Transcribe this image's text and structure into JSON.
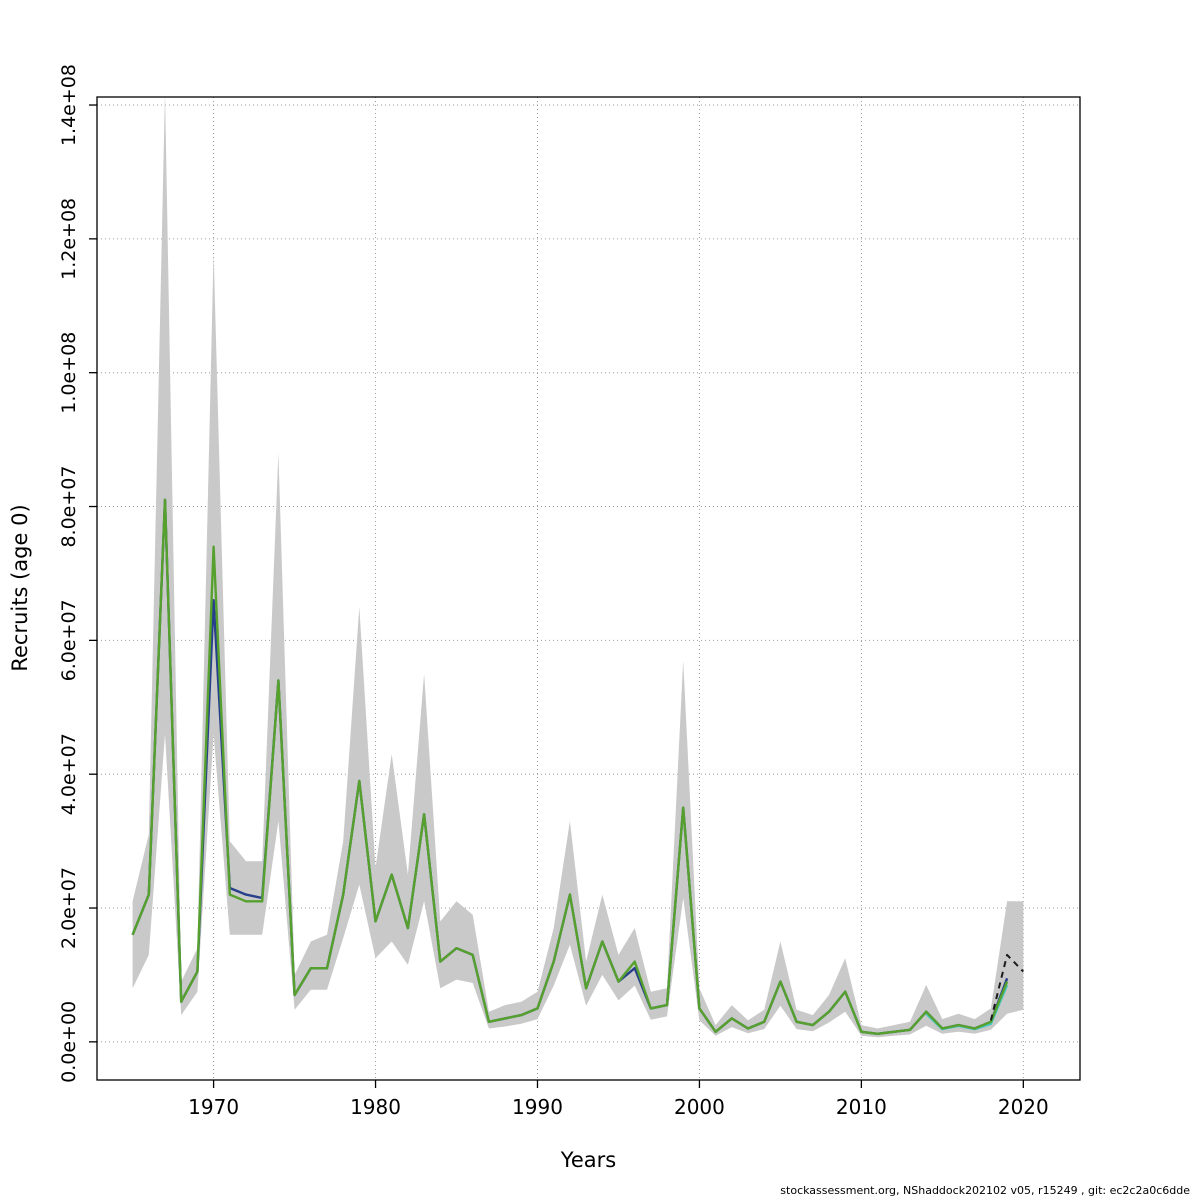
{
  "figure": {
    "xlabel": "Years",
    "ylabel": "Recruits (age 0)",
    "footer": "stockassessment.org, NShaddock202102  v05, r15249 , git: ec2c2a0c6dde"
  },
  "chart_data": {
    "type": "line",
    "title": "",
    "xlabel": "Years",
    "ylabel": "Recruits (age 0)",
    "grid": true,
    "xlim": [
      1962.8,
      2023.5
    ],
    "ylim": [
      -5700000,
      141200000
    ],
    "xticks": [
      1970,
      1980,
      1990,
      2000,
      2010,
      2020
    ],
    "yticks": [
      0,
      20000000,
      40000000,
      60000000,
      80000000,
      100000000,
      120000000,
      140000000
    ],
    "ytick_labels": [
      "0.0e+00",
      "2.0e+07",
      "4.0e+07",
      "6.0e+07",
      "8.0e+07",
      "1.0e+08",
      "1.2e+08",
      "1.4e+08"
    ],
    "x": [
      1965,
      1966,
      1967,
      1968,
      1969,
      1970,
      1971,
      1972,
      1973,
      1974,
      1975,
      1976,
      1977,
      1978,
      1979,
      1980,
      1981,
      1982,
      1983,
      1984,
      1985,
      1986,
      1987,
      1988,
      1989,
      1990,
      1991,
      1992,
      1993,
      1994,
      1995,
      1996,
      1997,
      1998,
      1999,
      2000,
      2001,
      2002,
      2003,
      2004,
      2005,
      2006,
      2007,
      2008,
      2009,
      2010,
      2011,
      2012,
      2013,
      2014,
      2015,
      2016,
      2017,
      2018,
      2019,
      2020
    ],
    "band": {
      "name": "confidence-band",
      "color": "#c9c9c9",
      "lower": [
        8000000,
        13000000,
        46000000,
        4000000,
        7500000,
        46000000,
        16000000,
        16000000,
        16000000,
        33000000,
        4800000,
        7800000,
        7800000,
        15500000,
        23500000,
        12500000,
        15000000,
        11500000,
        21000000,
        8000000,
        9300000,
        8800000,
        2000000,
        2300000,
        2700000,
        3400000,
        8400000,
        14500000,
        5400000,
        10000000,
        6200000,
        8400000,
        3300000,
        3800000,
        21500000,
        3200000,
        900000,
        2200000,
        1300000,
        1900000,
        5400000,
        1900000,
        1600000,
        2900000,
        4500000,
        900000,
        700000,
        900000,
        1100000,
        2400000,
        1200000,
        1500000,
        1200000,
        1800000,
        4200000,
        4800000
      ],
      "upper": [
        21000000,
        31000000,
        142000000,
        9000000,
        14000000,
        118000000,
        30000000,
        27000000,
        27000000,
        88000000,
        10000000,
        15000000,
        16000000,
        30000000,
        65000000,
        26000000,
        43000000,
        25000000,
        55000000,
        18000000,
        21000000,
        19000000,
        4500000,
        5500000,
        6000000,
        7500000,
        17000000,
        33000000,
        12000000,
        22000000,
        13000000,
        17000000,
        7500000,
        8000000,
        57000000,
        8000000,
        2500000,
        5500000,
        3200000,
        4800000,
        15000000,
        4800000,
        4000000,
        7000000,
        12500000,
        2500000,
        2000000,
        2500000,
        3000000,
        8500000,
        3400000,
        4200000,
        3400000,
        5000000,
        21000000,
        21000000
      ]
    },
    "series": [
      {
        "name": "run-blue",
        "color": "#27408b",
        "width": 2.4,
        "dash": false,
        "values": [
          16000000,
          22000000,
          81000000,
          6000000,
          10500000,
          66000000,
          23000000,
          22000000,
          21500000,
          54000000,
          7000000,
          11000000,
          11000000,
          22000000,
          39000000,
          18000000,
          25000000,
          17000000,
          34000000,
          12000000,
          14000000,
          13000000,
          3000000,
          3500000,
          4000000,
          5000000,
          12000000,
          22000000,
          8000000,
          15000000,
          9000000,
          11000000,
          5000000,
          5500000,
          35000000,
          5000000,
          1500000,
          3500000,
          2000000,
          3000000,
          9000000,
          3000000,
          2500000,
          4500000,
          7500000,
          1500000,
          1200000,
          1500000,
          1800000,
          4500000,
          2000000,
          2500000,
          2000000,
          3000000,
          9500000,
          null
        ]
      },
      {
        "name": "run-cyan",
        "color": "#45c6c0",
        "width": 2.4,
        "dash": false,
        "values": [
          null,
          null,
          null,
          null,
          null,
          null,
          null,
          null,
          null,
          null,
          null,
          null,
          null,
          null,
          null,
          null,
          null,
          null,
          null,
          null,
          null,
          null,
          null,
          null,
          null,
          null,
          null,
          null,
          null,
          null,
          null,
          null,
          null,
          null,
          null,
          null,
          null,
          null,
          null,
          null,
          null,
          null,
          null,
          null,
          null,
          null,
          null,
          null,
          null,
          4200000,
          1900000,
          2400000,
          1900000,
          2700000,
          8500000,
          null
        ]
      },
      {
        "name": "estimate-green",
        "color": "#56a12e",
        "width": 2.4,
        "dash": false,
        "values": [
          16000000,
          22000000,
          81000000,
          6000000,
          10500000,
          74000000,
          22000000,
          21000000,
          21000000,
          54000000,
          7000000,
          11000000,
          11000000,
          22000000,
          39000000,
          18000000,
          25000000,
          17000000,
          34000000,
          12000000,
          14000000,
          13000000,
          3000000,
          3500000,
          4000000,
          5000000,
          12000000,
          22000000,
          8000000,
          15000000,
          9000000,
          12000000,
          5000000,
          5500000,
          35000000,
          5000000,
          1500000,
          3500000,
          2000000,
          3000000,
          9000000,
          3000000,
          2500000,
          4500000,
          7500000,
          1500000,
          1200000,
          1500000,
          1800000,
          4500000,
          2000000,
          2500000,
          2000000,
          3000000,
          9000000,
          null
        ]
      },
      {
        "name": "forecast-dashed",
        "color": "#1a1a1a",
        "width": 2,
        "dash": true,
        "values": [
          null,
          null,
          null,
          null,
          null,
          null,
          null,
          null,
          null,
          null,
          null,
          null,
          null,
          null,
          null,
          null,
          null,
          null,
          null,
          null,
          null,
          null,
          null,
          null,
          null,
          null,
          null,
          null,
          null,
          null,
          null,
          null,
          null,
          null,
          null,
          null,
          null,
          null,
          null,
          null,
          null,
          null,
          null,
          null,
          null,
          null,
          null,
          null,
          null,
          null,
          null,
          null,
          null,
          3200000,
          13000000,
          10500000
        ]
      }
    ]
  }
}
